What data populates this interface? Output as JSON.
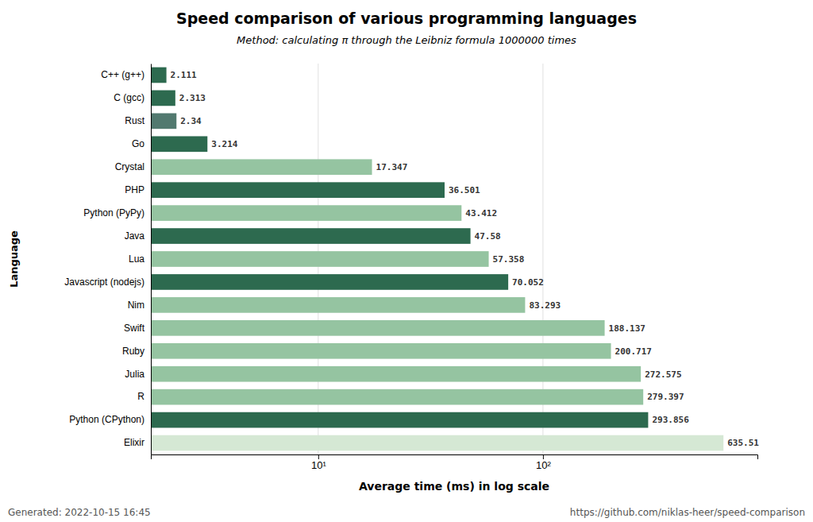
{
  "chart_data": {
    "type": "bar",
    "orientation": "horizontal",
    "title": "Speed comparison of various programming languages",
    "subtitle": "Method: calculating π through the Leibniz formula 1000000 times",
    "x_label": "Average time (ms) in log scale",
    "y_label": "Language",
    "annotations": [
      "Generated: 2022-10-15 16:45",
      "https://github.com/niklas-heer/speed-comparison"
    ],
    "categories": [
      "C++ (g++)",
      "C (gcc)",
      "Rust",
      "Go",
      "Crystal",
      "PHP",
      "Python (PyPy)",
      "Java",
      "Lua",
      "Javascript (nodejs)",
      "Nim",
      "Swift",
      "Ruby",
      "Julia",
      "R",
      "Python (CPython)",
      "Elixir"
    ],
    "values": [
      2.111,
      2.313,
      2.34,
      3.214,
      17.347,
      36.501,
      43.412,
      47.58,
      57.358,
      70.052,
      83.293,
      188.137,
      200.717,
      272.575,
      279.397,
      293.856,
      635.51
    ],
    "colors": [
      "#2d6a4f",
      "#2d6a4f",
      "#52796f",
      "#2d6a4f",
      "#95c4a1",
      "#2d6a4f",
      "#95c4a1",
      "#2d6a4f",
      "#95c4a1",
      "#2d6a4f",
      "#95c4a1",
      "#95c4a1",
      "#95c4a1",
      "#95c4a1",
      "#95c4a1",
      "#2d6a4f",
      "#d5e8d4"
    ],
    "log": "x",
    "xlim": [
      1.8,
      900
    ],
    "xticks": [
      {
        "value": 10,
        "label": "10¹"
      },
      {
        "value": 100,
        "label": "10²"
      }
    ],
    "grid": true,
    "data_labels": true
  }
}
